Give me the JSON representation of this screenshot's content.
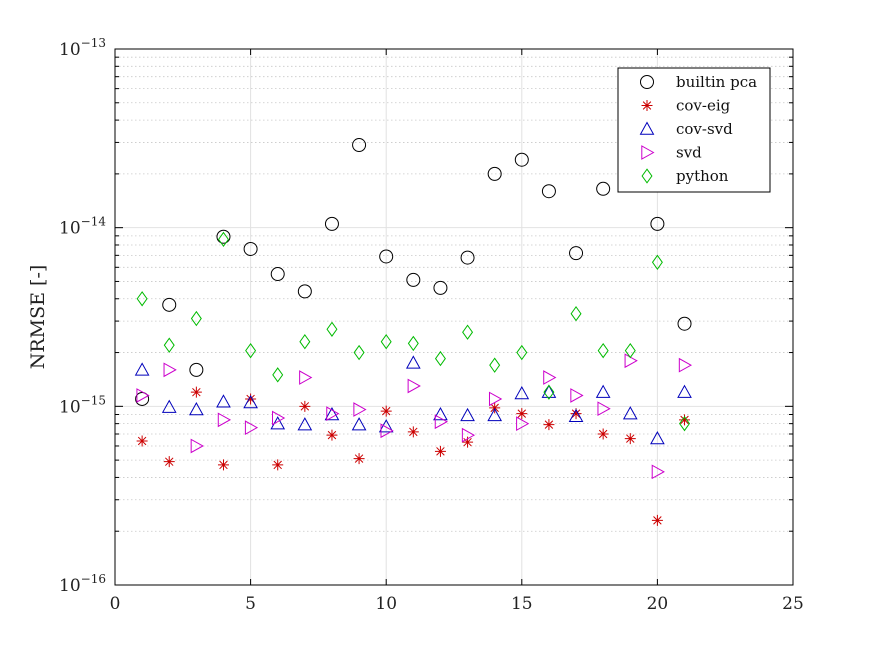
{
  "chart_data": {
    "type": "scatter",
    "title": "",
    "xlabel": "",
    "ylabel": "NRMSE [-]",
    "xlim": [
      0,
      25
    ],
    "xticks": [
      0,
      5,
      10,
      15,
      20,
      25
    ],
    "yscale": "log",
    "ylim": [
      1e-16,
      1e-13
    ],
    "ytick_labels": [
      {
        "base": "10",
        "exp": "−16",
        "value": 1e-16
      },
      {
        "base": "10",
        "exp": "−15",
        "value": 1e-15
      },
      {
        "base": "10",
        "exp": "−14",
        "value": 1e-14
      },
      {
        "base": "10",
        "exp": "−13",
        "value": 1e-13
      }
    ],
    "grid": true,
    "legend_position": "top-right",
    "series": [
      {
        "name": "builtin pca",
        "marker": "circle",
        "color": "#000000",
        "x": [
          1,
          2,
          3,
          4,
          5,
          6,
          7,
          8,
          9,
          10,
          11,
          12,
          13,
          14,
          15,
          16,
          17,
          18,
          19,
          20,
          21
        ],
        "y": [
          1.1e-15,
          3.7e-15,
          1.6e-15,
          8.9e-15,
          7.6e-15,
          5.5e-15,
          4.4e-15,
          1.05e-14,
          2.9e-14,
          6.9e-15,
          5.1e-15,
          4.6e-15,
          6.8e-15,
          2e-14,
          2.4e-14,
          1.6e-14,
          7.2e-15,
          1.65e-14,
          null,
          1.05e-14,
          2.9e-15
        ]
      },
      {
        "name": "cov-eig",
        "marker": "asterisk",
        "color": "#cc0000",
        "x": [
          1,
          2,
          3,
          4,
          5,
          6,
          7,
          8,
          9,
          10,
          11,
          12,
          13,
          14,
          15,
          16,
          17,
          18,
          19,
          20,
          21
        ],
        "y": [
          6.4e-16,
          4.9e-16,
          1.2e-15,
          4.7e-16,
          1.1e-15,
          4.7e-16,
          1e-15,
          6.9e-16,
          5.1e-16,
          9.4e-16,
          7.2e-16,
          5.6e-16,
          6.3e-16,
          9.8e-16,
          9.1e-16,
          7.9e-16,
          9.1e-16,
          7e-16,
          6.6e-16,
          2.3e-16,
          8.4e-16
        ]
      },
      {
        "name": "cov-svd",
        "marker": "triangle-up",
        "color": "#0000bb",
        "x": [
          1,
          2,
          3,
          4,
          5,
          6,
          7,
          8,
          9,
          10,
          11,
          12,
          13,
          14,
          15,
          16,
          17,
          18,
          19,
          20,
          21
        ],
        "y": [
          1.6e-15,
          9.9e-16,
          9.6e-16,
          1.06e-15,
          1.05e-15,
          8e-16,
          7.9e-16,
          9e-16,
          7.9e-16,
          7.7e-16,
          1.75e-15,
          9e-16,
          8.9e-16,
          8.9e-16,
          1.18e-15,
          1.2e-15,
          8.8e-16,
          1.2e-15,
          9.1e-16,
          6.6e-16,
          1.2e-15
        ]
      },
      {
        "name": "svd",
        "marker": "triangle-right",
        "color": "#cc00cc",
        "x": [
          1,
          2,
          3,
          4,
          5,
          6,
          7,
          8,
          9,
          10,
          11,
          12,
          13,
          14,
          15,
          16,
          17,
          18,
          19,
          20,
          21
        ],
        "y": [
          1.15e-15,
          1.6e-15,
          6e-16,
          8.4e-16,
          7.6e-16,
          8.6e-16,
          1.45e-15,
          9.1e-16,
          9.6e-16,
          7.3e-16,
          1.3e-15,
          8.2e-16,
          6.9e-16,
          1.1e-15,
          8e-16,
          1.45e-15,
          1.15e-15,
          9.7e-16,
          1.8e-15,
          4.3e-16,
          1.7e-15
        ]
      },
      {
        "name": "python",
        "marker": "diamond",
        "color": "#00bb00",
        "x": [
          1,
          2,
          3,
          4,
          5,
          6,
          7,
          8,
          9,
          10,
          11,
          12,
          13,
          14,
          15,
          16,
          17,
          18,
          19,
          20,
          21
        ],
        "y": [
          4e-15,
          2.2e-15,
          3.1e-15,
          8.6e-15,
          2.05e-15,
          1.5e-15,
          2.3e-15,
          2.7e-15,
          2e-15,
          2.3e-15,
          2.25e-15,
          1.85e-15,
          2.6e-15,
          1.7e-15,
          2e-15,
          1.2e-15,
          3.3e-15,
          2.05e-15,
          2.05e-15,
          6.4e-15,
          8e-16
        ]
      }
    ]
  }
}
